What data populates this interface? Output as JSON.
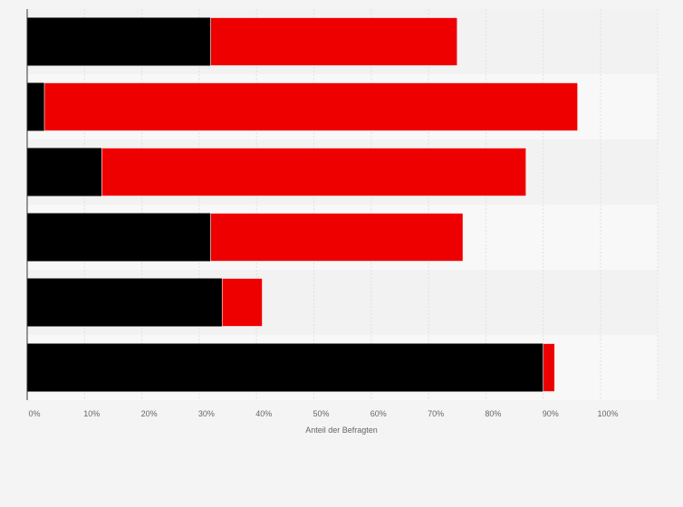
{
  "chart_data": {
    "type": "bar",
    "orientation": "horizontal",
    "stacked": true,
    "categories": [
      "",
      "",
      "",
      "",
      "",
      ""
    ],
    "series": [
      {
        "values": [
          32,
          3,
          13,
          32,
          34,
          90
        ],
        "color": "#000000"
      },
      {
        "values": [
          43,
          93,
          74,
          44,
          7,
          2
        ],
        "color": "#ee0000"
      }
    ],
    "xlabel": "Anteil der Befragten",
    "ylabel": "",
    "xlim": [
      0,
      110
    ],
    "xticks": [
      0,
      10,
      20,
      30,
      40,
      50,
      60,
      70,
      80,
      90,
      100
    ],
    "xtick_labels": [
      "0%",
      "10%",
      "20%",
      "30%",
      "40%",
      "50%",
      "60%",
      "70%",
      "80%",
      "90%",
      "100%"
    ],
    "grid": true,
    "legend": "none"
  }
}
